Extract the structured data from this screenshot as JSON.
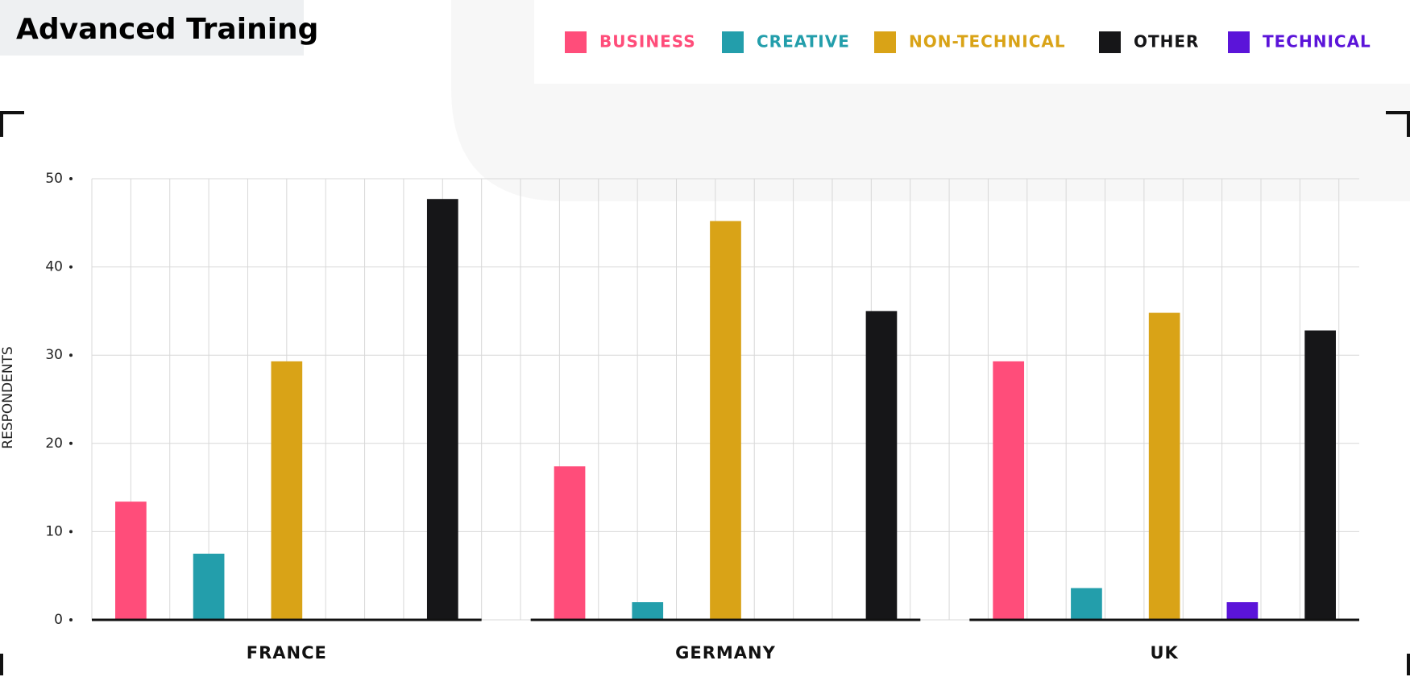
{
  "chart_data": {
    "type": "bar",
    "title": "Advanced Training",
    "y_label": "RESPONDENTS",
    "categories": [
      "FRANCE",
      "GERMANY",
      "UK"
    ],
    "series": [
      {
        "name": "BUSINESS",
        "color": "#ff4d7a",
        "values": [
          13.4,
          17.4,
          29.3
        ]
      },
      {
        "name": "CREATIVE",
        "color": "#239eab",
        "values": [
          7.5,
          2,
          3.6
        ]
      },
      {
        "name": "NON-TECHNICAL",
        "color": "#d9a317",
        "values": [
          29.3,
          45.2,
          34.8
        ]
      },
      {
        "name": "OTHER",
        "color": "#161618",
        "values": [
          47.7,
          35,
          32.8
        ]
      },
      {
        "name": "TECHNICAL",
        "color": "#5b14d9",
        "values": [
          null,
          0,
          2
        ]
      }
    ],
    "ylim": [
      0,
      50
    ],
    "yticks": [
      0,
      10,
      20,
      30,
      40,
      50
    ],
    "grid": true
  }
}
